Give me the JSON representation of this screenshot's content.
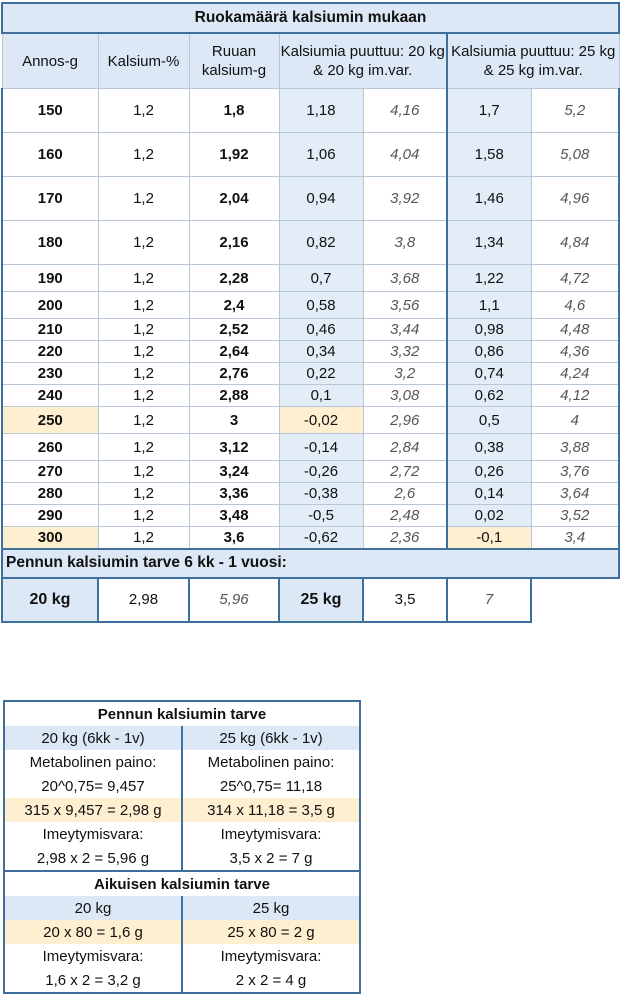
{
  "title": "Ruokamäärä kalsiumin mukaan",
  "headers": {
    "annos": "Annos-g",
    "kalsium_pct": "Kalsium-%",
    "ruuan": "Ruuan kalsium-g",
    "puuttuu20": "Kalsiumia puuttuu: 20 kg & 20 kg im.var.",
    "puuttuu25": "Kalsiumia puuttuu: 25 kg & 25 kg im.var."
  },
  "rows": [
    {
      "annos": "150",
      "pct": "1,2",
      "ruuan": "1,8",
      "p20": "1,18",
      "p20i": "4,16",
      "p25": "1,7",
      "p25i": "5,2"
    },
    {
      "annos": "160",
      "pct": "1,2",
      "ruuan": "1,92",
      "p20": "1,06",
      "p20i": "4,04",
      "p25": "1,58",
      "p25i": "5,08"
    },
    {
      "annos": "170",
      "pct": "1,2",
      "ruuan": "2,04",
      "p20": "0,94",
      "p20i": "3,92",
      "p25": "1,46",
      "p25i": "4,96"
    },
    {
      "annos": "180",
      "pct": "1,2",
      "ruuan": "2,16",
      "p20": "0,82",
      "p20i": "3,8",
      "p25": "1,34",
      "p25i": "4,84"
    },
    {
      "annos": "190",
      "pct": "1,2",
      "ruuan": "2,28",
      "p20": "0,7",
      "p20i": "3,68",
      "p25": "1,22",
      "p25i": "4,72"
    },
    {
      "annos": "200",
      "pct": "1,2",
      "ruuan": "2,4",
      "p20": "0,58",
      "p20i": "3,56",
      "p25": "1,1",
      "p25i": "4,6"
    },
    {
      "annos": "210",
      "pct": "1,2",
      "ruuan": "2,52",
      "p20": "0,46",
      "p20i": "3,44",
      "p25": "0,98",
      "p25i": "4,48"
    },
    {
      "annos": "220",
      "pct": "1,2",
      "ruuan": "2,64",
      "p20": "0,34",
      "p20i": "3,32",
      "p25": "0,86",
      "p25i": "4,36"
    },
    {
      "annos": "230",
      "pct": "1,2",
      "ruuan": "2,76",
      "p20": "0,22",
      "p20i": "3,2",
      "p25": "0,74",
      "p25i": "4,24"
    },
    {
      "annos": "240",
      "pct": "1,2",
      "ruuan": "2,88",
      "p20": "0,1",
      "p20i": "3,08",
      "p25": "0,62",
      "p25i": "4,12"
    },
    {
      "annos": "250",
      "pct": "1,2",
      "ruuan": "3",
      "p20": "-0,02",
      "p20i": "2,96",
      "p25": "0,5",
      "p25i": "4"
    },
    {
      "annos": "260",
      "pct": "1,2",
      "ruuan": "3,12",
      "p20": "-0,14",
      "p20i": "2,84",
      "p25": "0,38",
      "p25i": "3,88"
    },
    {
      "annos": "270",
      "pct": "1,2",
      "ruuan": "3,24",
      "p20": "-0,26",
      "p20i": "2,72",
      "p25": "0,26",
      "p25i": "3,76"
    },
    {
      "annos": "280",
      "pct": "1,2",
      "ruuan": "3,36",
      "p20": "-0,38",
      "p20i": "2,6",
      "p25": "0,14",
      "p25i": "3,64"
    },
    {
      "annos": "290",
      "pct": "1,2",
      "ruuan": "3,48",
      "p20": "-0,5",
      "p20i": "2,48",
      "p25": "0,02",
      "p25i": "3,52"
    },
    {
      "annos": "300",
      "pct": "1,2",
      "ruuan": "3,6",
      "p20": "-0,62",
      "p20i": "2,36",
      "p25": "-0,1",
      "p25i": "3,4"
    }
  ],
  "puppy": {
    "title": "Pennun kalsiumin tarve 6 kk - 1 vuosi:",
    "w20": "20 kg",
    "v20": "2,98",
    "v20i": "5,96",
    "w25": "25 kg",
    "v25": "3,5",
    "v25i": "7"
  },
  "info": {
    "puppy_title": "Pennun kalsiumin tarve",
    "col20_head": "20 kg (6kk - 1v)",
    "col25_head": "25 kg (6kk - 1v)",
    "metab_label": "Metabolinen paino:",
    "metab20": "20^0,75= 9,457",
    "metab25": "25^0,75= 11,18",
    "calc20": "315 x 9,457 = 2,98 g",
    "calc25": "314 x 11,18 = 3,5 g",
    "imey_label": "Imeytymisvara:",
    "imey20": "2,98 x 2 = 5,96 g",
    "imey25": "3,5 x 2 = 7 g",
    "adult_title": "Aikuisen kalsiumin tarve",
    "adult20_head": "20 kg",
    "adult25_head": "25 kg",
    "adult20_calc": "20 x 80 = 1,6 g",
    "adult25_calc": "25 x 80 = 2 g",
    "adult20_imey": "1,6 x 2 = 3,2 g",
    "adult25_imey": "2 x 2 = 4 g"
  }
}
